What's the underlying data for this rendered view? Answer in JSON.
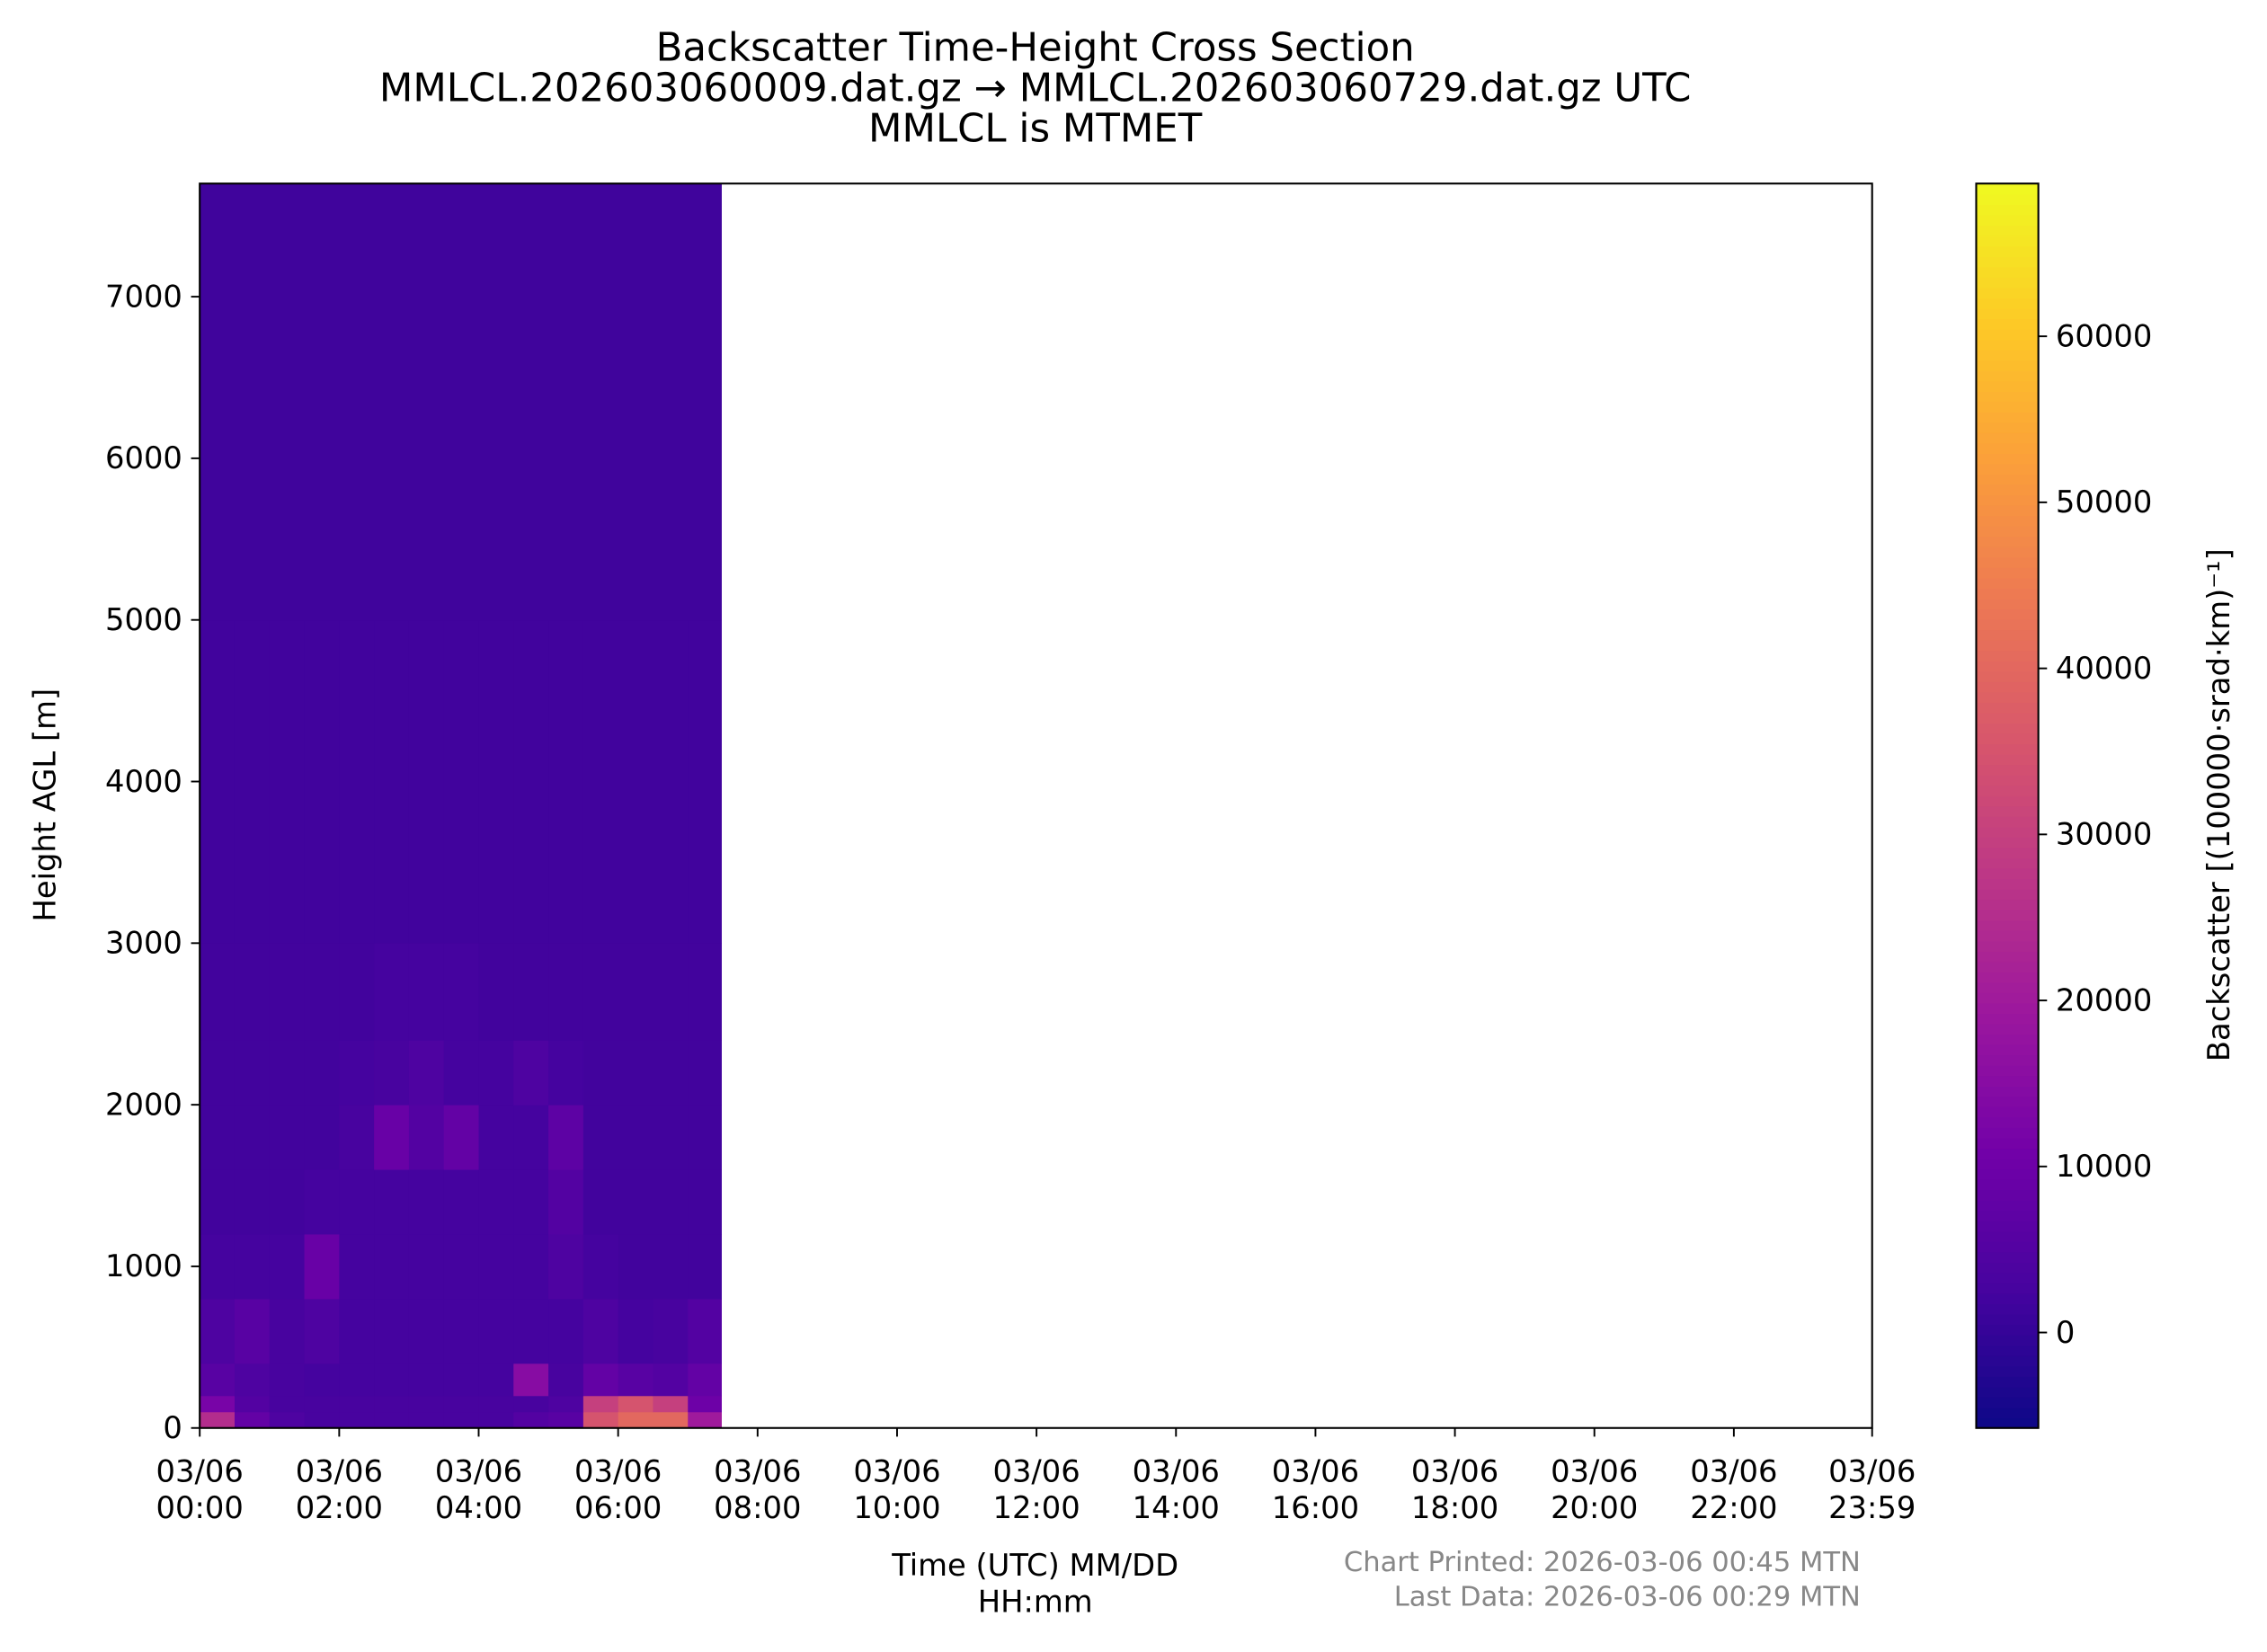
{
  "chart_data": {
    "type": "heatmap",
    "title": [
      "Backscatter Time-Height Cross Section",
      "MMLCL.202603060009.dat.gz → MMLCL.202603060729.dat.gz UTC",
      "MMLCL is MTMET"
    ],
    "xlabel": "Time (UTC) MM/DD\nHH:mm",
    "ylabel": "Height AGL [m]",
    "colorbar_label": "Backscatter [(100000·srad·km)⁻¹]",
    "footnotes": [
      "Chart Printed: 2026-03-06 00:45 MTN",
      "Last Data: 2026-03-06 00:29 MTN"
    ],
    "colormap": "plasma",
    "xlim": [
      0,
      23.983
    ],
    "xticks": [
      {
        "value": 0,
        "label": "03/06\n00:00"
      },
      {
        "value": 2,
        "label": "03/06\n02:00"
      },
      {
        "value": 4,
        "label": "03/06\n04:00"
      },
      {
        "value": 6,
        "label": "03/06\n06:00"
      },
      {
        "value": 8,
        "label": "03/06\n08:00"
      },
      {
        "value": 10,
        "label": "03/06\n10:00"
      },
      {
        "value": 12,
        "label": "03/06\n12:00"
      },
      {
        "value": 14,
        "label": "03/06\n14:00"
      },
      {
        "value": 16,
        "label": "03/06\n16:00"
      },
      {
        "value": 18,
        "label": "03/06\n18:00"
      },
      {
        "value": 20,
        "label": "03/06\n20:00"
      },
      {
        "value": 22,
        "label": "03/06\n22:00"
      },
      {
        "value": 23.983,
        "label": "03/06\n23:59"
      }
    ],
    "ylim": [
      0,
      7700
    ],
    "yticks": [
      0,
      1000,
      2000,
      3000,
      4000,
      5000,
      6000,
      7000
    ],
    "clim": [
      -5750,
      69200
    ],
    "cticks": [
      0,
      10000,
      20000,
      30000,
      40000,
      50000,
      60000
    ],
    "x_edges": [
      0,
      0.5,
      1,
      1.5,
      2,
      2.5,
      3,
      3.5,
      4,
      4.5,
      5,
      5.5,
      6,
      6.5,
      7,
      7.48
    ],
    "y_edges": [
      0,
      100,
      200,
      400,
      800,
      1200,
      1600,
      2000,
      2400,
      3000,
      5000,
      7700
    ],
    "z": [
      [
        25000,
        8000,
        4000,
        3000,
        3000,
        3000,
        3000,
        3000,
        3000,
        5000,
        6000,
        35000,
        40000,
        40000,
        20000
      ],
      [
        12000,
        5000,
        3000,
        3000,
        3000,
        3000,
        3000,
        3000,
        3000,
        3000,
        4000,
        30000,
        35000,
        30000,
        10000
      ],
      [
        6000,
        4000,
        3000,
        2500,
        2500,
        2500,
        2500,
        2500,
        2500,
        15000,
        3000,
        8000,
        6000,
        5000,
        8000
      ],
      [
        4000,
        6000,
        3000,
        4000,
        2500,
        2500,
        2500,
        2500,
        2500,
        2500,
        2500,
        4000,
        2500,
        3000,
        5000
      ],
      [
        2500,
        2500,
        2500,
        9000,
        2500,
        2500,
        2500,
        2500,
        2500,
        2500,
        4000,
        2500,
        2000,
        2000,
        2000
      ],
      [
        2000,
        2000,
        2000,
        2500,
        2500,
        2500,
        2500,
        2500,
        2500,
        2500,
        5000,
        2000,
        2000,
        2000,
        2000
      ],
      [
        2000,
        2000,
        2000,
        2000,
        3000,
        9000,
        5000,
        8000,
        2500,
        2500,
        7000,
        2000,
        2000,
        2000,
        2000
      ],
      [
        2000,
        2000,
        2000,
        2000,
        2500,
        3000,
        4000,
        2500,
        2500,
        4000,
        2500,
        2000,
        2000,
        2000,
        2000
      ],
      [
        2000,
        2000,
        2000,
        2000,
        2000,
        2500,
        2500,
        2500,
        2000,
        2000,
        2000,
        2000,
        2000,
        2000,
        2000
      ],
      [
        1800,
        1800,
        1800,
        1800,
        1800,
        1800,
        1800,
        1800,
        1800,
        1800,
        1800,
        1800,
        1800,
        1800,
        1800
      ],
      [
        1700,
        1700,
        1700,
        1700,
        1700,
        1700,
        1700,
        1700,
        1700,
        1700,
        1700,
        1700,
        1700,
        1700,
        1700
      ]
    ]
  }
}
